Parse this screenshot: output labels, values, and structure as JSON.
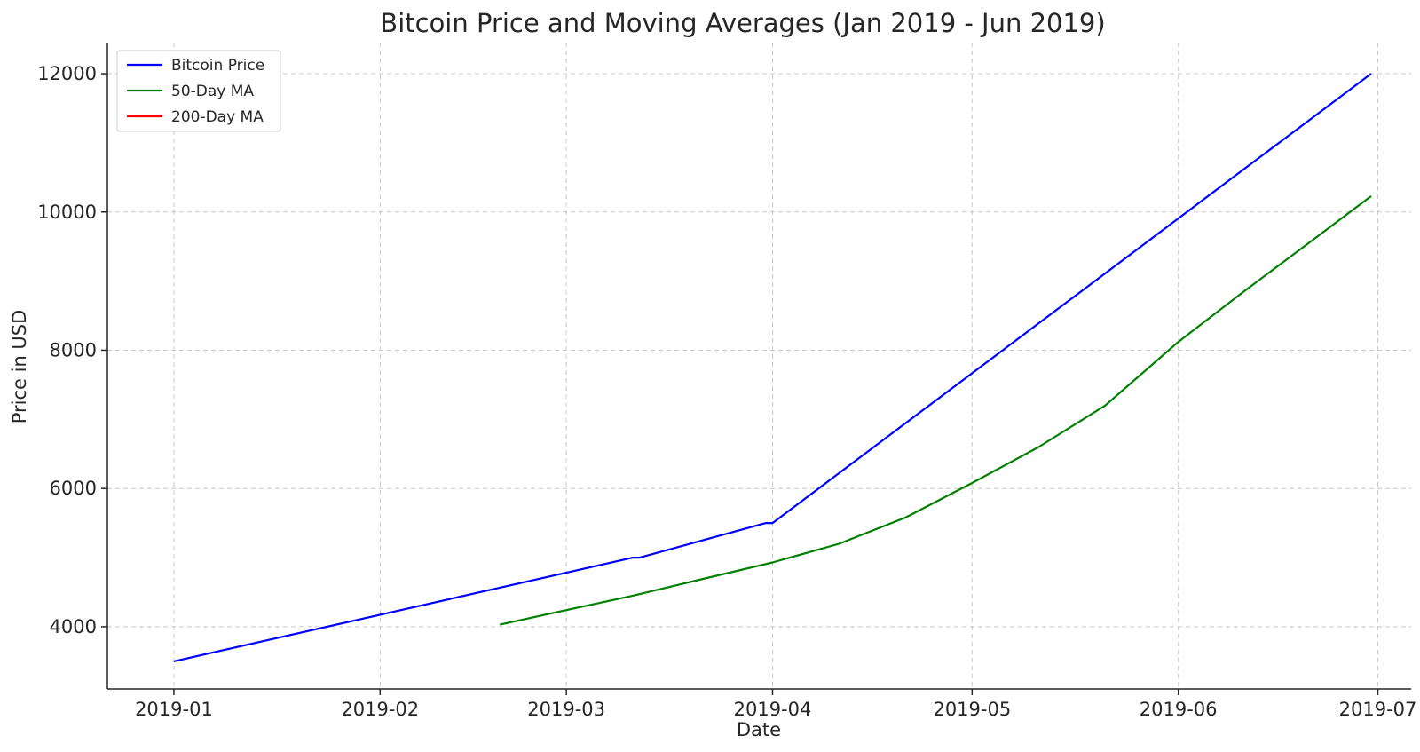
{
  "chart_data": {
    "type": "line",
    "title": "Bitcoin Price and Moving Averages (Jan 2019 - Jun 2019)",
    "xlabel": "Date",
    "ylabel": "Price in USD",
    "x_ticks": [
      "2019-01",
      "2019-02",
      "2019-03",
      "2019-04",
      "2019-05",
      "2019-06",
      "2019-07"
    ],
    "y_ticks": [
      4000,
      6000,
      8000,
      10000,
      12000
    ],
    "xlim": [
      "2018-12-22",
      "2019-07-06"
    ],
    "ylim": [
      3100,
      12450
    ],
    "grid": true,
    "legend_position": "top-left",
    "series": [
      {
        "name": "Bitcoin Price",
        "color": "#0000ff",
        "points": [
          {
            "x": "2019-01-01",
            "y": 3500
          },
          {
            "x": "2019-03-11",
            "y": 5000
          },
          {
            "x": "2019-03-12",
            "y": 5000
          },
          {
            "x": "2019-03-31",
            "y": 5500
          },
          {
            "x": "2019-04-01",
            "y": 5500
          },
          {
            "x": "2019-06-30",
            "y": 12000
          }
        ]
      },
      {
        "name": "50-Day MA",
        "color": "#008000",
        "points": [
          {
            "x": "2019-02-19",
            "y": 4030
          },
          {
            "x": "2019-03-01",
            "y": 4240
          },
          {
            "x": "2019-03-11",
            "y": 4450
          },
          {
            "x": "2019-03-21",
            "y": 4680
          },
          {
            "x": "2019-04-01",
            "y": 4930
          },
          {
            "x": "2019-04-11",
            "y": 5200
          },
          {
            "x": "2019-04-21",
            "y": 5580
          },
          {
            "x": "2019-05-01",
            "y": 6080
          },
          {
            "x": "2019-05-11",
            "y": 6600
          },
          {
            "x": "2019-05-21",
            "y": 7200
          },
          {
            "x": "2019-06-01",
            "y": 8120
          },
          {
            "x": "2019-06-11",
            "y": 8860
          },
          {
            "x": "2019-06-21",
            "y": 9580
          },
          {
            "x": "2019-06-30",
            "y": 10230
          }
        ]
      },
      {
        "name": "200-Day MA",
        "color": "#ff0000",
        "points": []
      }
    ]
  }
}
